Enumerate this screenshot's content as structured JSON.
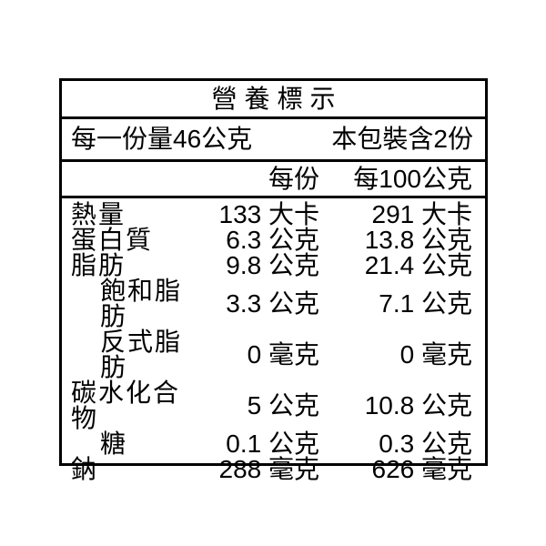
{
  "label": {
    "title": "營養標示",
    "serving_info": {
      "serving_size": "每一份量46公克",
      "servings_per_package": "本包裝含2份"
    },
    "column_headers": {
      "per_serving": "每份",
      "per_100g": "每100公克"
    },
    "rows": [
      {
        "name": "熱量",
        "indent": false,
        "per_serving": "133 大卡",
        "per_100g": "291 大卡"
      },
      {
        "name": "蛋白質",
        "indent": false,
        "per_serving": "6.3 公克",
        "per_100g": "13.8 公克"
      },
      {
        "name": "脂肪",
        "indent": false,
        "per_serving": "9.8 公克",
        "per_100g": "21.4 公克"
      },
      {
        "name": "飽和脂肪",
        "indent": true,
        "per_serving": "3.3 公克",
        "per_100g": "7.1 公克"
      },
      {
        "name": "反式脂肪",
        "indent": true,
        "per_serving": "0 毫克",
        "per_100g": "0 毫克"
      },
      {
        "name": "碳水化合物",
        "indent": false,
        "per_serving": "5 公克",
        "per_100g": "10.8 公克"
      },
      {
        "name": "糖",
        "indent": true,
        "per_serving": "0.1 公克",
        "per_100g": "0.3 公克"
      },
      {
        "name": "鈉",
        "indent": false,
        "per_serving": "288 毫克",
        "per_100g": "626 毫克"
      }
    ],
    "colors": {
      "text": "#000000",
      "border": "#000000",
      "background": "#ffffff"
    }
  }
}
